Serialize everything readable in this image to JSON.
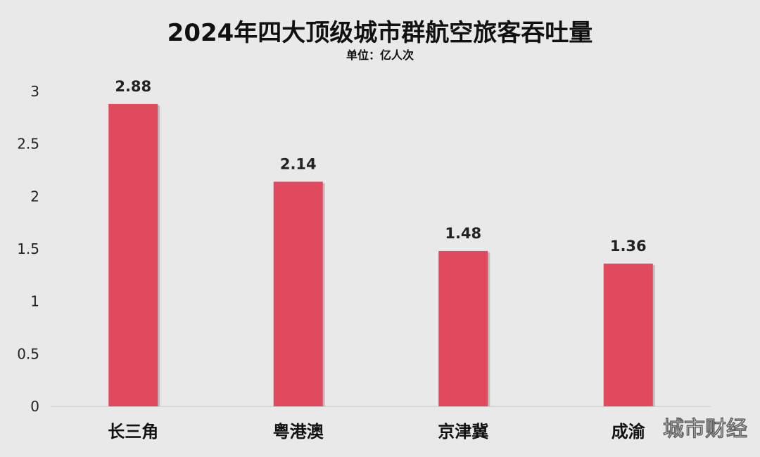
{
  "chart_data": {
    "type": "bar",
    "title": "2024年四大顶级城市群航空旅客吞吐量",
    "subtitle": "单位：亿人次",
    "categories": [
      "长三角",
      "粤港澳",
      "京津冀",
      "成渝"
    ],
    "values": [
      2.88,
      2.14,
      1.48,
      1.36
    ],
    "value_labels": [
      "2.88",
      "2.14",
      "1.48",
      "1.36"
    ],
    "yticks": [
      "0",
      "0.5",
      "1",
      "1.5",
      "2",
      "2.5",
      "3"
    ],
    "ylim": [
      0,
      3
    ],
    "grid": false,
    "bar_color": "#e04a5f",
    "xlabel": "",
    "ylabel": ""
  },
  "watermark": "城市财经"
}
